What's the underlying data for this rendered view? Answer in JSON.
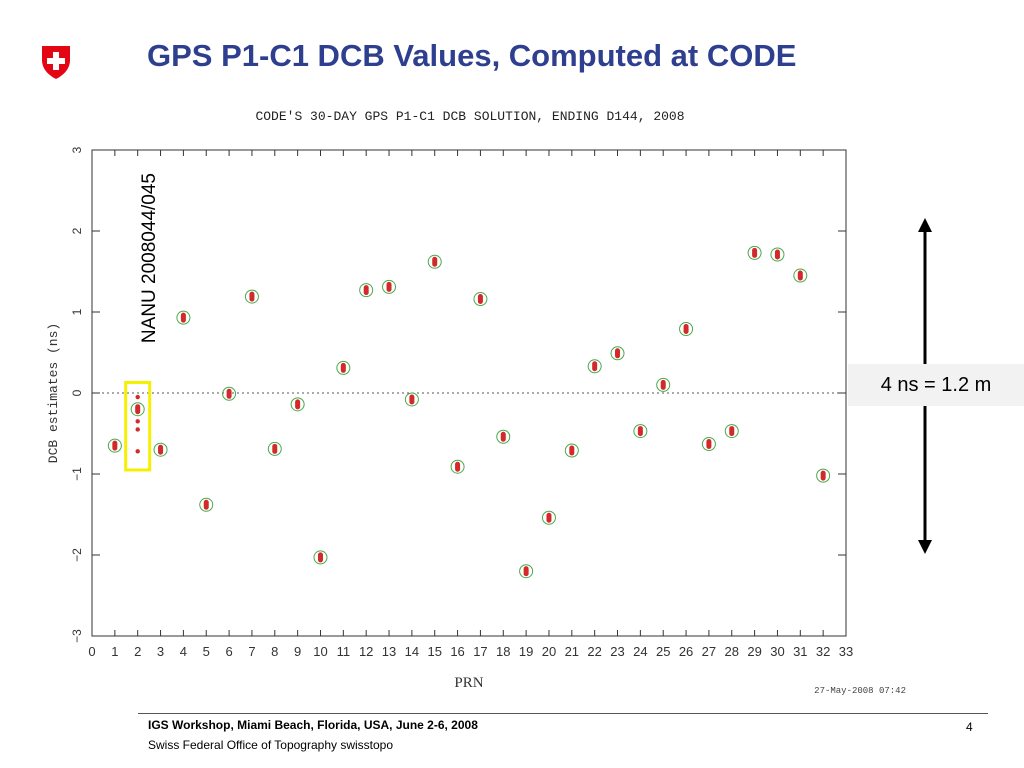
{
  "header": {
    "title": "GPS P1-C1 DCB Values, Computed at CODE",
    "logo_icon": "swiss-cross-icon"
  },
  "annotation": {
    "text": "4 ns = 1.2 m"
  },
  "footer": {
    "event": "IGS Workshop, Miami Beach, Florida, USA, June 2-6, 2008",
    "organization": "Swiss Federal Office of Topography swisstopo",
    "page_number": "4"
  },
  "colors": {
    "title": "#2f3f8f",
    "logo_red": "#e30613",
    "marker_red": "#d22a2a",
    "marker_ring": "#4aa84a",
    "highlight": "#f5f000"
  },
  "chart_data": {
    "type": "scatter",
    "title": "CODE'S 30-DAY GPS P1-C1 DCB SOLUTION, ENDING D144, 2008",
    "xlabel": "PRN",
    "ylabel": "DCB estimates (ns)",
    "xlim": [
      0,
      33
    ],
    "ylim": [
      -3,
      3
    ],
    "xticks": [
      "0",
      "1",
      "2",
      "3",
      "4",
      "5",
      "6",
      "7",
      "8",
      "9",
      "10",
      "11",
      "12",
      "13",
      "14",
      "15",
      "16",
      "17",
      "18",
      "19",
      "20",
      "21",
      "22",
      "23",
      "24",
      "25",
      "26",
      "27",
      "28",
      "29",
      "30",
      "31",
      "32",
      "33"
    ],
    "yticks": [
      "-3",
      "-2",
      "-1",
      "0",
      "1",
      "2",
      "3"
    ],
    "timestamp": "27-May-2008 07:42",
    "vertical_annotation": "NANU 2008044/045",
    "points": [
      {
        "x": 1,
        "y": -0.65
      },
      {
        "x": 2,
        "y": -0.2
      },
      {
        "x": 3,
        "y": -0.7
      },
      {
        "x": 4,
        "y": 0.93
      },
      {
        "x": 5,
        "y": -1.38
      },
      {
        "x": 6,
        "y": -0.01
      },
      {
        "x": 7,
        "y": 1.19
      },
      {
        "x": 8,
        "y": -0.69
      },
      {
        "x": 9,
        "y": -0.14
      },
      {
        "x": 10,
        "y": -2.03
      },
      {
        "x": 11,
        "y": 0.31
      },
      {
        "x": 12,
        "y": 1.27
      },
      {
        "x": 13,
        "y": 1.31
      },
      {
        "x": 14,
        "y": -0.08
      },
      {
        "x": 15,
        "y": 1.62
      },
      {
        "x": 16,
        "y": -0.91
      },
      {
        "x": 17,
        "y": 1.16
      },
      {
        "x": 18,
        "y": -0.54
      },
      {
        "x": 19,
        "y": -2.2
      },
      {
        "x": 20,
        "y": -1.54
      },
      {
        "x": 21,
        "y": -0.71
      },
      {
        "x": 22,
        "y": 0.33
      },
      {
        "x": 23,
        "y": 0.49
      },
      {
        "x": 24,
        "y": -0.47
      },
      {
        "x": 25,
        "y": 0.1
      },
      {
        "x": 26,
        "y": 0.79
      },
      {
        "x": 27,
        "y": -0.63
      },
      {
        "x": 28,
        "y": -0.47
      },
      {
        "x": 29,
        "y": 1.73
      },
      {
        "x": 30,
        "y": 1.71
      },
      {
        "x": 31,
        "y": 1.45
      },
      {
        "x": 32,
        "y": -1.02
      }
    ],
    "highlighted_prn_samples": {
      "x": 2,
      "y": [
        -0.05,
        -0.2,
        -0.35,
        -0.45,
        -0.72
      ]
    },
    "grid": false,
    "zero_line": "dotted"
  }
}
